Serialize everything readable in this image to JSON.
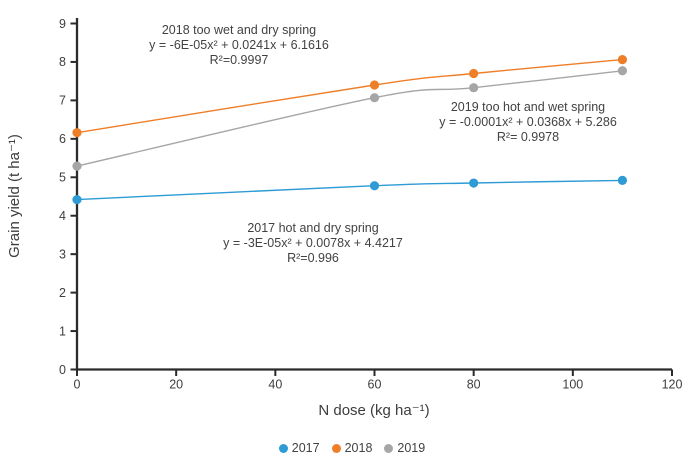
{
  "chart_data": {
    "type": "scatter",
    "x": [
      0,
      60,
      80,
      110
    ],
    "series": [
      {
        "name": "2017",
        "color": "#2E9BD5",
        "values": [
          4.42,
          4.78,
          4.85,
          4.92
        ]
      },
      {
        "name": "2018",
        "color": "#EE7E28",
        "values": [
          6.16,
          7.4,
          7.7,
          8.06
        ]
      },
      {
        "name": "2019",
        "color": "#A6A6A6",
        "values": [
          5.29,
          7.07,
          7.33,
          7.77
        ]
      }
    ],
    "xlabel": "N dose (kg ha⁻¹)",
    "ylabel": "Grain yield (t ha⁻¹)",
    "xlim": [
      0,
      120
    ],
    "ylim": [
      0,
      9
    ],
    "x_ticks": [
      0,
      20,
      40,
      60,
      80,
      100,
      120
    ],
    "y_ticks": [
      0,
      1,
      2,
      3,
      4,
      5,
      6,
      7,
      8,
      9
    ],
    "grid": false,
    "legend_position": "bottom",
    "trendlines": [
      {
        "series": "2017",
        "equation": "y = -3E-05x² + 0.0078x + 4.4217",
        "r2": "R²=0.996"
      },
      {
        "series": "2018",
        "equation": "y = -6E-05x² + 0.0241x + 6.1616",
        "r2": "R²=0.9997"
      },
      {
        "series": "2019",
        "equation": "y = -0.0001x² + 0.0368x + 5.286",
        "r2": "R²= 0.9978"
      }
    ]
  },
  "annotations": [
    {
      "id": "2018",
      "lines": [
        "2018 too wet and dry spring",
        "y = -6E-05x² + 0.0241x + 6.1616",
        "R²=0.9997"
      ]
    },
    {
      "id": "2019",
      "lines": [
        "2019 too hot and wet spring",
        "y = -0.0001x² + 0.0368x + 5.286",
        "R²= 0.9978"
      ]
    },
    {
      "id": "2017",
      "lines": [
        "2017 hot and dry spring",
        "y = -3E-05x² + 0.0078x + 4.4217",
        "R²=0.996"
      ]
    }
  ],
  "colors": {
    "axis": "#2b2b2b",
    "tick_text": "#3f3f3f",
    "annotation_text": "#424242"
  }
}
